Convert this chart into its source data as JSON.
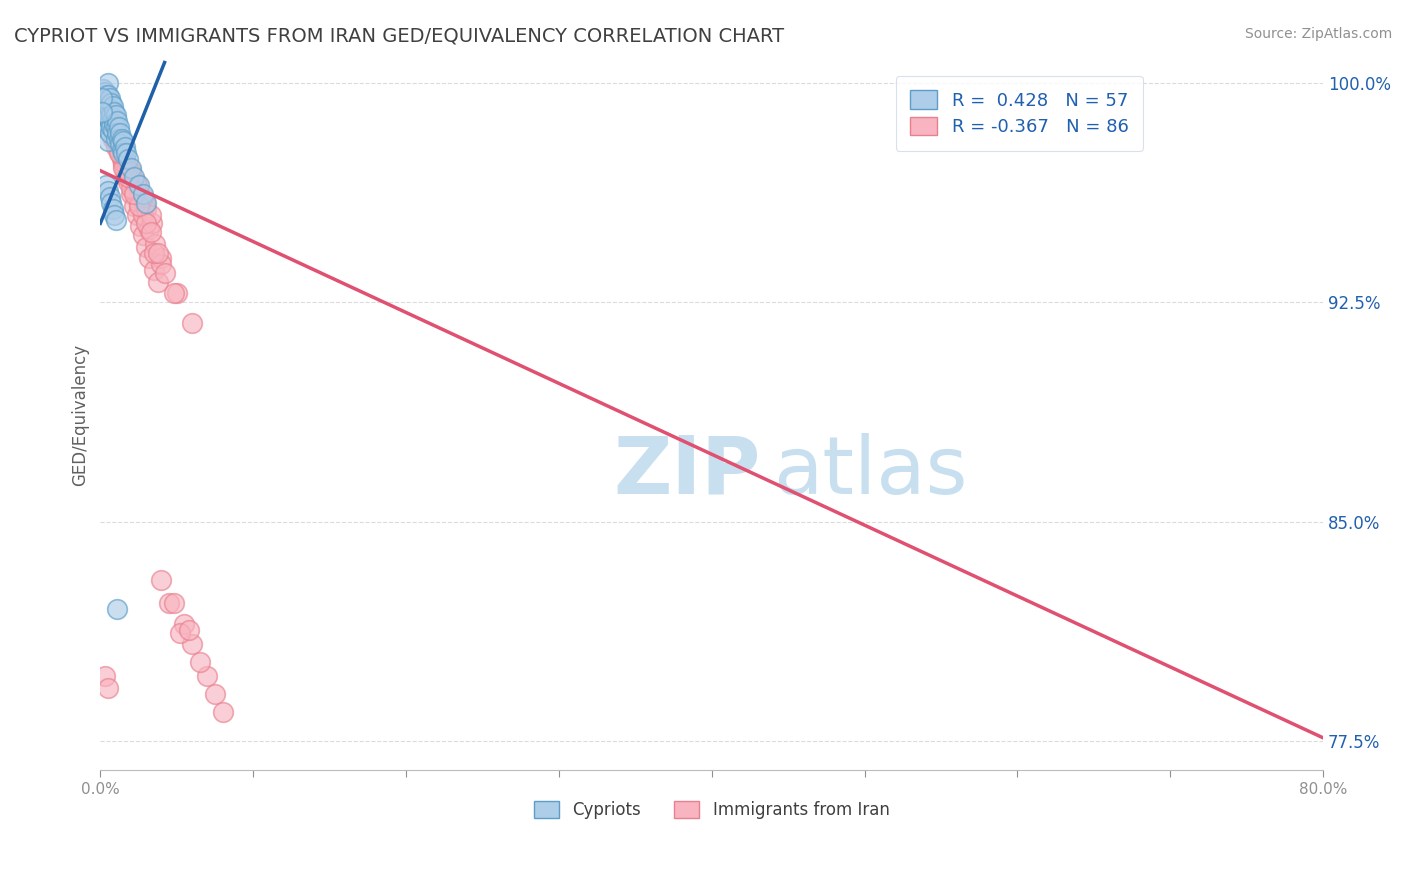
{
  "title": "CYPRIOT VS IMMIGRANTS FROM IRAN GED/EQUIVALENCY CORRELATION CHART",
  "source": "Source: ZipAtlas.com",
  "ylabel": "GED/Equivalency",
  "xmin": 0.0,
  "xmax": 0.8,
  "ymin": 0.765,
  "ymax": 1.008,
  "yticks": [
    0.775,
    0.85,
    0.925,
    1.0
  ],
  "ytick_labels": [
    "77.5%",
    "85.0%",
    "92.5%",
    "100.0%"
  ],
  "xticks": [
    0.0,
    0.1,
    0.2,
    0.3,
    0.4,
    0.5,
    0.6,
    0.7,
    0.8
  ],
  "xtick_labels": [
    "0.0%",
    "",
    "",
    "",
    "",
    "",
    "",
    "",
    "80.0%"
  ],
  "legend_R1": "0.428",
  "legend_N1": "57",
  "legend_R2": "-0.367",
  "legend_N2": "86",
  "blue_face_color": "#aecde8",
  "blue_edge_color": "#5a9ec9",
  "pink_face_color": "#f8b4c0",
  "pink_edge_color": "#e8808e",
  "blue_line_color": "#2060a8",
  "pink_line_color": "#e05070",
  "watermark_zip": "ZIP",
  "watermark_atlas": "atlas",
  "watermark_color": "#c8dff0",
  "cypriot_label": "Cypriots",
  "iran_label": "Immigrants from Iran",
  "blue_points_x": [
    0.002,
    0.002,
    0.003,
    0.003,
    0.003,
    0.004,
    0.004,
    0.004,
    0.005,
    0.005,
    0.005,
    0.005,
    0.005,
    0.005,
    0.006,
    0.006,
    0.006,
    0.006,
    0.007,
    0.007,
    0.007,
    0.008,
    0.008,
    0.008,
    0.009,
    0.009,
    0.01,
    0.01,
    0.01,
    0.011,
    0.011,
    0.012,
    0.012,
    0.013,
    0.013,
    0.014,
    0.014,
    0.015,
    0.015,
    0.016,
    0.017,
    0.018,
    0.02,
    0.022,
    0.025,
    0.028,
    0.03,
    0.001,
    0.001,
    0.004,
    0.005,
    0.006,
    0.007,
    0.008,
    0.009,
    0.01,
    0.011
  ],
  "blue_points_y": [
    0.998,
    0.993,
    0.997,
    0.992,
    0.987,
    0.996,
    0.991,
    0.986,
    1.0,
    0.996,
    0.992,
    0.988,
    0.984,
    0.98,
    0.995,
    0.991,
    0.987,
    0.983,
    0.993,
    0.989,
    0.985,
    0.992,
    0.988,
    0.984,
    0.99,
    0.986,
    0.989,
    0.985,
    0.981,
    0.987,
    0.983,
    0.985,
    0.981,
    0.983,
    0.979,
    0.981,
    0.977,
    0.98,
    0.976,
    0.978,
    0.976,
    0.974,
    0.971,
    0.968,
    0.965,
    0.962,
    0.959,
    0.995,
    0.99,
    0.965,
    0.963,
    0.961,
    0.959,
    0.957,
    0.955,
    0.953,
    0.82
  ],
  "pink_points_x": [
    0.002,
    0.003,
    0.004,
    0.005,
    0.006,
    0.007,
    0.008,
    0.009,
    0.01,
    0.011,
    0.012,
    0.013,
    0.014,
    0.015,
    0.016,
    0.017,
    0.018,
    0.02,
    0.022,
    0.024,
    0.026,
    0.028,
    0.03,
    0.032,
    0.035,
    0.038,
    0.005,
    0.008,
    0.01,
    0.012,
    0.015,
    0.018,
    0.022,
    0.025,
    0.028,
    0.032,
    0.036,
    0.04,
    0.006,
    0.009,
    0.013,
    0.017,
    0.021,
    0.025,
    0.03,
    0.034,
    0.007,
    0.011,
    0.016,
    0.02,
    0.024,
    0.029,
    0.033,
    0.008,
    0.013,
    0.019,
    0.023,
    0.028,
    0.04,
    0.05,
    0.06,
    0.035,
    0.042,
    0.048,
    0.02,
    0.03,
    0.038,
    0.015,
    0.025,
    0.01,
    0.022,
    0.033,
    0.012,
    0.018,
    0.06,
    0.07,
    0.075,
    0.08,
    0.055,
    0.065,
    0.045,
    0.052,
    0.04,
    0.048,
    0.058,
    0.003,
    0.005
  ],
  "pink_points_y": [
    0.997,
    0.995,
    0.994,
    0.992,
    0.99,
    0.988,
    0.986,
    0.984,
    0.982,
    0.98,
    0.978,
    0.976,
    0.974,
    0.972,
    0.97,
    0.968,
    0.966,
    0.962,
    0.958,
    0.955,
    0.951,
    0.948,
    0.944,
    0.94,
    0.936,
    0.932,
    0.988,
    0.983,
    0.98,
    0.977,
    0.973,
    0.969,
    0.963,
    0.959,
    0.955,
    0.95,
    0.945,
    0.94,
    0.985,
    0.981,
    0.976,
    0.972,
    0.967,
    0.962,
    0.957,
    0.952,
    0.983,
    0.979,
    0.974,
    0.97,
    0.965,
    0.959,
    0.955,
    0.981,
    0.976,
    0.97,
    0.966,
    0.961,
    0.938,
    0.928,
    0.918,
    0.942,
    0.935,
    0.928,
    0.964,
    0.952,
    0.942,
    0.971,
    0.958,
    0.978,
    0.962,
    0.949,
    0.976,
    0.968,
    0.808,
    0.797,
    0.791,
    0.785,
    0.815,
    0.802,
    0.822,
    0.812,
    0.83,
    0.822,
    0.813,
    0.797,
    0.793
  ],
  "blue_line_x": [
    0.0,
    0.042
  ],
  "blue_line_y": [
    0.952,
    1.007
  ],
  "pink_line_x": [
    0.0,
    0.8
  ],
  "pink_line_y": [
    0.97,
    0.776
  ],
  "grid_color": "#cccccc",
  "background_color": "#ffffff",
  "title_color": "#404040",
  "axis_label_color": "#606060",
  "tick_color": "#909090",
  "legend_text_color": "#2060b0",
  "legend_edge_color": "#d0d8e8"
}
